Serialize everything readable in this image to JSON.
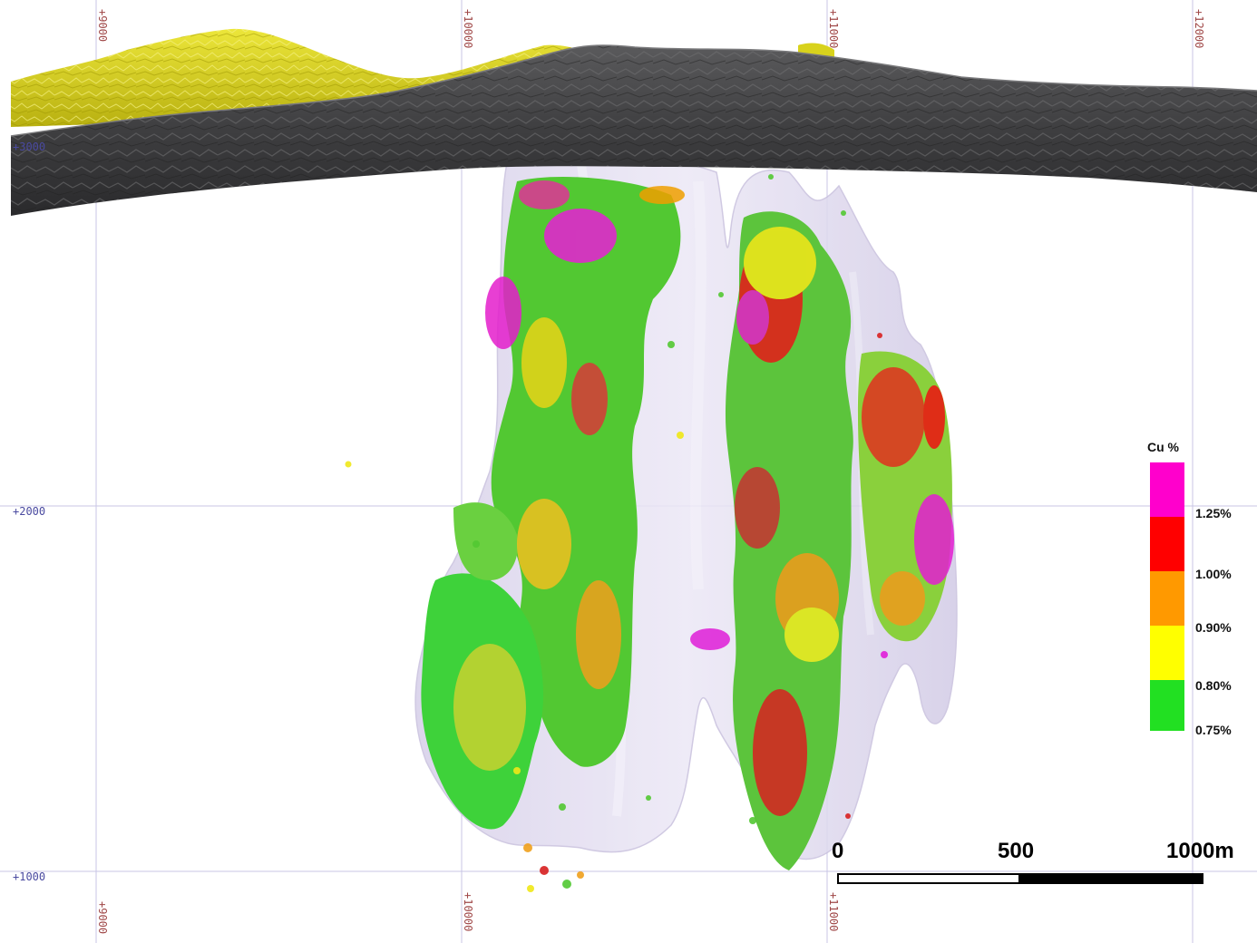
{
  "section": {
    "easting_labels": [
      "+9000",
      "+10000",
      "+11000",
      "+12000"
    ],
    "elevation_labels": [
      "+3000",
      "+2000",
      "+1000"
    ]
  },
  "legend": {
    "title": "Cu %",
    "classes": [
      {
        "color": "#ff00cc",
        "label": "1.25%"
      },
      {
        "color": "#ff0000",
        "label": "1.00%"
      },
      {
        "color": "#ff9900",
        "label": "0.90%"
      },
      {
        "color": "#ffff00",
        "label": "0.80%"
      },
      {
        "color": "#22e022",
        "label": "0.75%"
      }
    ]
  },
  "scale_bar": {
    "labels": [
      "0",
      "500",
      "1000m"
    ]
  },
  "colors": {
    "topography": "#3c3c3e",
    "overburden": "#d8d21c",
    "envelope": "#dcd6ee",
    "grid": "#c9c6e6"
  }
}
